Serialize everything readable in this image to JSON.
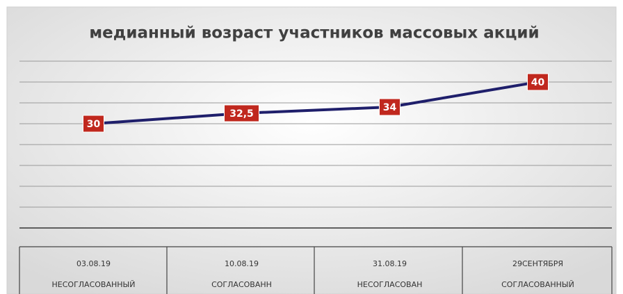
{
  "chart_data": {
    "type": "line",
    "title": "медианный возраст участников массовых  акций",
    "categories": [
      "03.08.19",
      "10.08.19",
      "31.08.19",
      "29СЕНТЯБРЯ"
    ],
    "subcategories": [
      "НЕСОГЛАСОВАННЫЙ",
      "СОГЛАСОВАНН",
      "НЕСОГЛАСОВАН",
      "СОГЛАСОВАННЫЙ"
    ],
    "values": [
      30,
      32.5,
      34,
      40
    ],
    "value_labels": [
      "30",
      "32,5",
      "34",
      "40"
    ],
    "color": "#1f1f6b",
    "label_color": "#c0281e",
    "ylim": [
      5,
      45
    ],
    "yticks": [
      5,
      10,
      15,
      20,
      25,
      30,
      35,
      40,
      45
    ],
    "ytick_labels": false,
    "grid": true
  }
}
